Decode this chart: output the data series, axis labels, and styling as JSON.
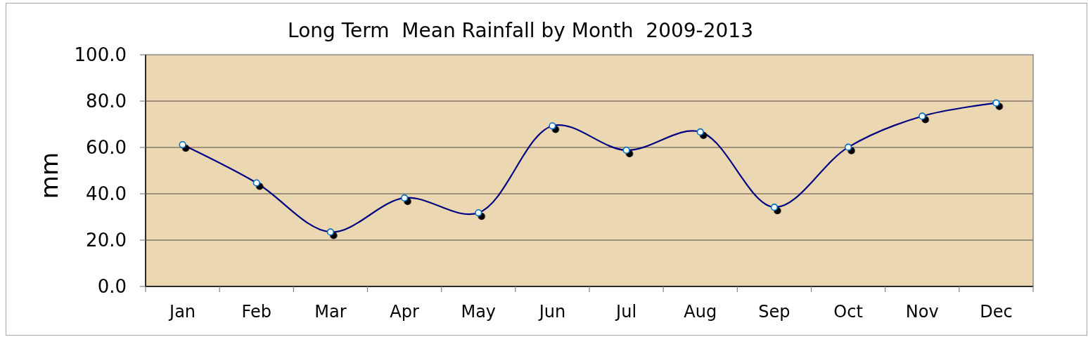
{
  "chart_data": {
    "type": "line",
    "title": "Long Term  Mean Rainfall by Month  2009-2013",
    "ylabel": "mm",
    "categories": [
      "Jan",
      "Feb",
      "Mar",
      "Apr",
      "May",
      "Jun",
      "Jul",
      "Aug",
      "Sep",
      "Oct",
      "Nov",
      "Dec"
    ],
    "series": [
      {
        "color": "#000080",
        "values": [
          61.2,
          44.7,
          23.5,
          38.2,
          31.8,
          69.3,
          58.8,
          66.7,
          34.2,
          60.1,
          73.5,
          79.2
        ]
      }
    ],
    "ylim": [
      0,
      100
    ],
    "yticks": [
      {
        "value": 0,
        "label": "0.0"
      },
      {
        "value": 20,
        "label": "20.0"
      },
      {
        "value": 40,
        "label": "40.0"
      },
      {
        "value": 60,
        "label": "60.0"
      },
      {
        "value": 80,
        "label": "80.0"
      },
      {
        "value": 100,
        "label": "100.0"
      }
    ],
    "grid": "y",
    "marker": "circle",
    "line_style": "solid"
  }
}
